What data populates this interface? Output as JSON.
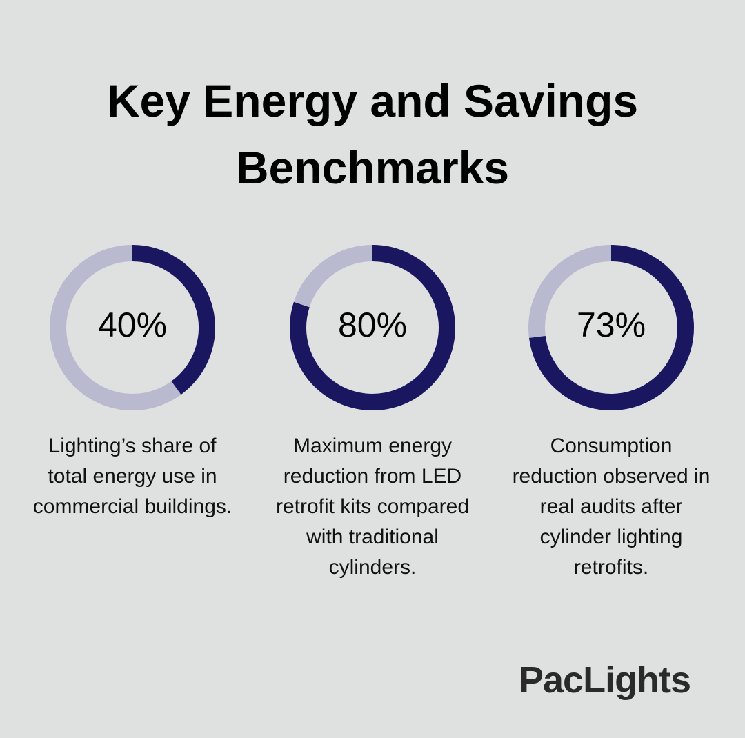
{
  "chart_data": {
    "type": "donut",
    "title": "Key Energy and Savings Benchmarks",
    "categories": [
      "Lighting’s share of total energy use in commercial buildings.",
      "Maximum energy reduction from LED retrofit kits compared with traditional cylinders.",
      "Consumption reduction observed in real audits after cylinder lighting retrofits."
    ],
    "values": [
      40,
      80,
      73
    ],
    "value_labels": [
      "40%",
      "80%",
      "73%"
    ],
    "color": "#1a1760",
    "track_color": "#b9b9cf"
  },
  "brand": "PacLights"
}
